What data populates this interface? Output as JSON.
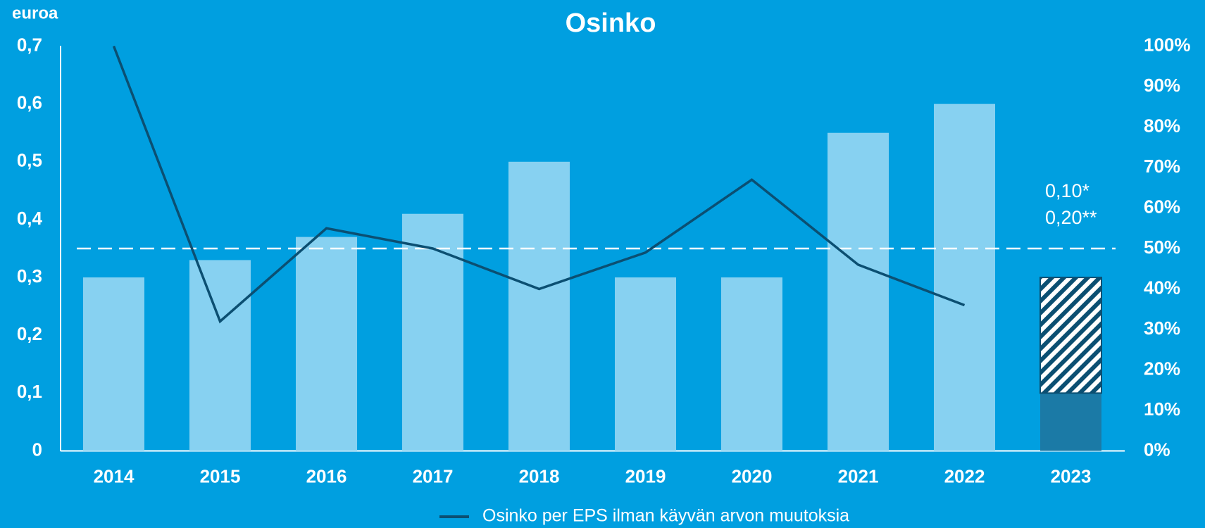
{
  "chart_data": {
    "type": "bar",
    "title": "Osinko",
    "y_axis_label": "euroa",
    "categories": [
      "2014",
      "2015",
      "2016",
      "2017",
      "2018",
      "2019",
      "2020",
      "2021",
      "2022",
      "2023"
    ],
    "series": [
      {
        "color": "#87d1f1",
        "values": [
          0.3,
          0.33,
          0.37,
          0.41,
          0.5,
          0.3,
          0.3,
          0.55,
          0.6,
          null
        ]
      },
      {
        "color": "#1b7aa6",
        "values": [
          null,
          null,
          null,
          null,
          null,
          null,
          null,
          null,
          null,
          0.1
        ]
      },
      {
        "color": "#0b4f72",
        "pattern": "hatch",
        "values": [
          null,
          null,
          null,
          null,
          null,
          null,
          null,
          null,
          null,
          0.2
        ]
      },
      {
        "name": "Osinko per EPS ilman käyvän arvon muutoksia",
        "type": "line",
        "axis": "y2",
        "color": "#0b4f72",
        "values": [
          100,
          32,
          55,
          50,
          40,
          49,
          67,
          46,
          36,
          null
        ]
      }
    ],
    "ylim": [
      0,
      0.7
    ],
    "yticks": [
      0,
      {
        "value": 0.1,
        "label": "0,1"
      },
      {
        "value": 0.2,
        "label": "0,2"
      },
      {
        "value": 0.3,
        "label": "0,3"
      },
      {
        "value": 0.4,
        "label": "0,4"
      },
      {
        "value": 0.5,
        "label": "0,5"
      },
      {
        "value": 0.6,
        "label": "0,6"
      },
      {
        "value": 0.7,
        "label": "0,7"
      }
    ],
    "y2lim": [
      0,
      100
    ],
    "y2ticks": [
      {
        "value": 0,
        "label": "0%"
      },
      {
        "value": 10,
        "label": "10%"
      },
      {
        "value": 20,
        "label": "20%"
      },
      {
        "value": 30,
        "label": "30%"
      },
      {
        "value": 40,
        "label": "40%"
      },
      {
        "value": 50,
        "label": "50%"
      },
      {
        "value": 60,
        "label": "60%"
      },
      {
        "value": 70,
        "label": "70%"
      },
      {
        "value": 80,
        "label": "80%"
      },
      {
        "value": 90,
        "label": "90%"
      },
      {
        "value": 100,
        "label": "100%"
      }
    ],
    "reference_line": {
      "axis": "y2",
      "value": 50,
      "color": "#ffffff",
      "style": "dashed"
    },
    "annotations": [
      "0,10*",
      "0,20**"
    ],
    "grid": false,
    "legend": "bottom"
  }
}
